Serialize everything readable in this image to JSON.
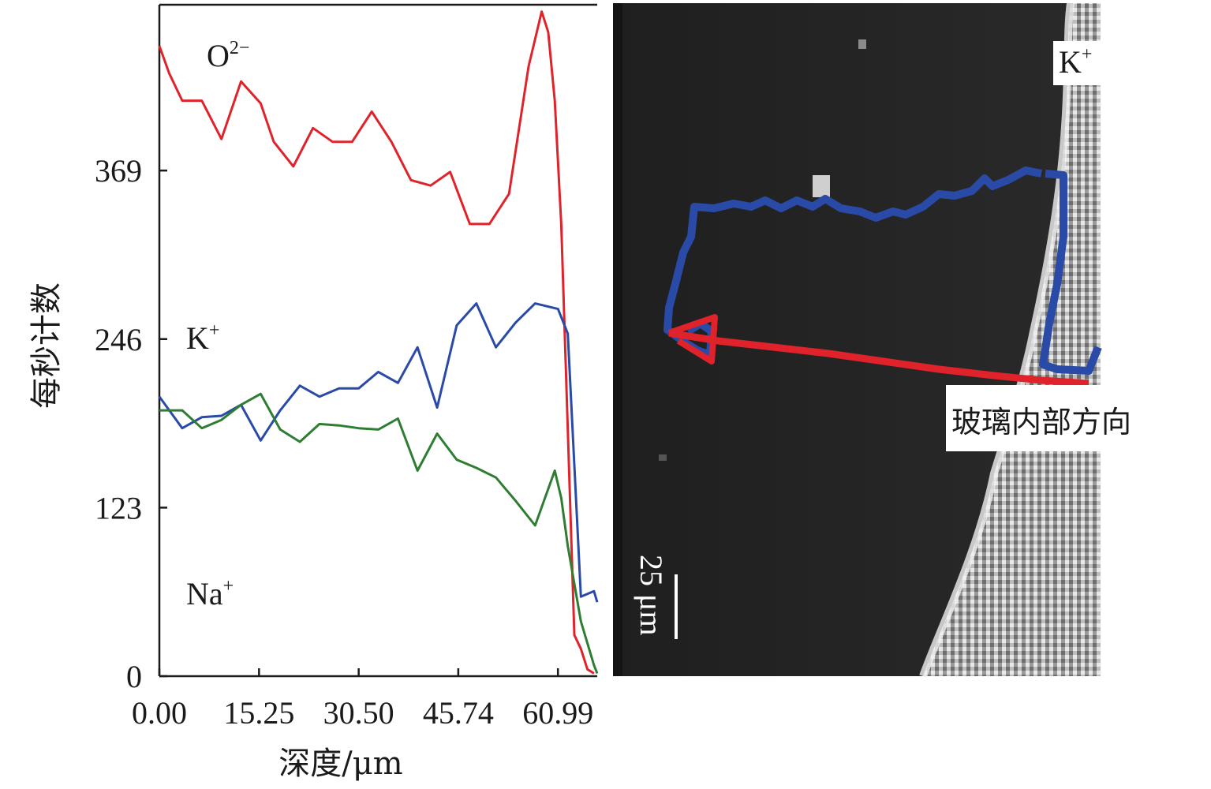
{
  "chart_data": {
    "type": "line",
    "xlabel": "深度/μm",
    "ylabel": "每秒计数",
    "x_ticks": [
      "0.00",
      "15.25",
      "30.50",
      "45.74",
      "60.99"
    ],
    "x_tick_values": [
      0,
      15.25,
      30.5,
      45.74,
      60.99
    ],
    "y_ticks": [
      "0",
      "123",
      "246",
      "369"
    ],
    "y_tick_values": [
      0,
      123,
      246,
      369
    ],
    "xlim": [
      0,
      67
    ],
    "ylim": [
      0,
      490
    ],
    "series": [
      {
        "name": "O",
        "label_sup": "2−",
        "color": "#e0232b",
        "x": [
          0,
          1.5,
          3.5,
          6.5,
          9.5,
          12.5,
          15.5,
          17.5,
          20.5,
          23.5,
          26.5,
          29.5,
          32.5,
          35.5,
          38.5,
          41.5,
          44.5,
          47.5,
          50.5,
          53.5,
          56.5,
          58.5,
          59.5,
          60.5,
          61.5,
          62.5,
          63.5,
          64.5,
          65.5,
          66.5
        ],
        "values": [
          460,
          440,
          420,
          420,
          392,
          434,
          418,
          390,
          372,
          400,
          390,
          390,
          412,
          390,
          362,
          358,
          368,
          330,
          330,
          352,
          445,
          485,
          470,
          420,
          330,
          180,
          30,
          20,
          5,
          2
        ]
      },
      {
        "name": "K",
        "label_sup": "+",
        "color": "#2a4aa8",
        "x": [
          0,
          3.5,
          6.5,
          9.5,
          12.5,
          15.5,
          18.5,
          21.5,
          24.5,
          27.5,
          30.5,
          33.5,
          36.5,
          39.5,
          42.5,
          45.5,
          48.5,
          51.5,
          54.5,
          57.5,
          61,
          62.5,
          64.5,
          66.5,
          67
        ],
        "values": [
          204,
          181,
          189,
          190,
          198,
          172,
          194,
          212,
          204,
          210,
          210,
          222,
          214,
          240,
          196,
          256,
          272,
          240,
          258,
          272,
          268,
          250,
          58,
          62,
          54
        ]
      },
      {
        "name": "Na",
        "label_sup": "+",
        "color": "#2e7d32",
        "x": [
          0,
          3.5,
          6.5,
          9.5,
          12.5,
          15.5,
          18.5,
          21.5,
          24.5,
          27.5,
          30.5,
          33.5,
          36.5,
          39.5,
          42.5,
          45.5,
          48.5,
          51.5,
          54.5,
          57.5,
          60.5,
          61.5,
          62.5,
          64.5,
          66.5,
          67
        ],
        "values": [
          194,
          194,
          181,
          187,
          198,
          206,
          180,
          171,
          184,
          183,
          181,
          180,
          188,
          150,
          177,
          158,
          152,
          145,
          128,
          110,
          150,
          130,
          95,
          40,
          8,
          2
        ]
      }
    ]
  },
  "image_panel": {
    "top_label": "K",
    "top_label_sup": "+",
    "direction_label": "玻璃内部方向",
    "scale_bar_label": "25 μm"
  }
}
